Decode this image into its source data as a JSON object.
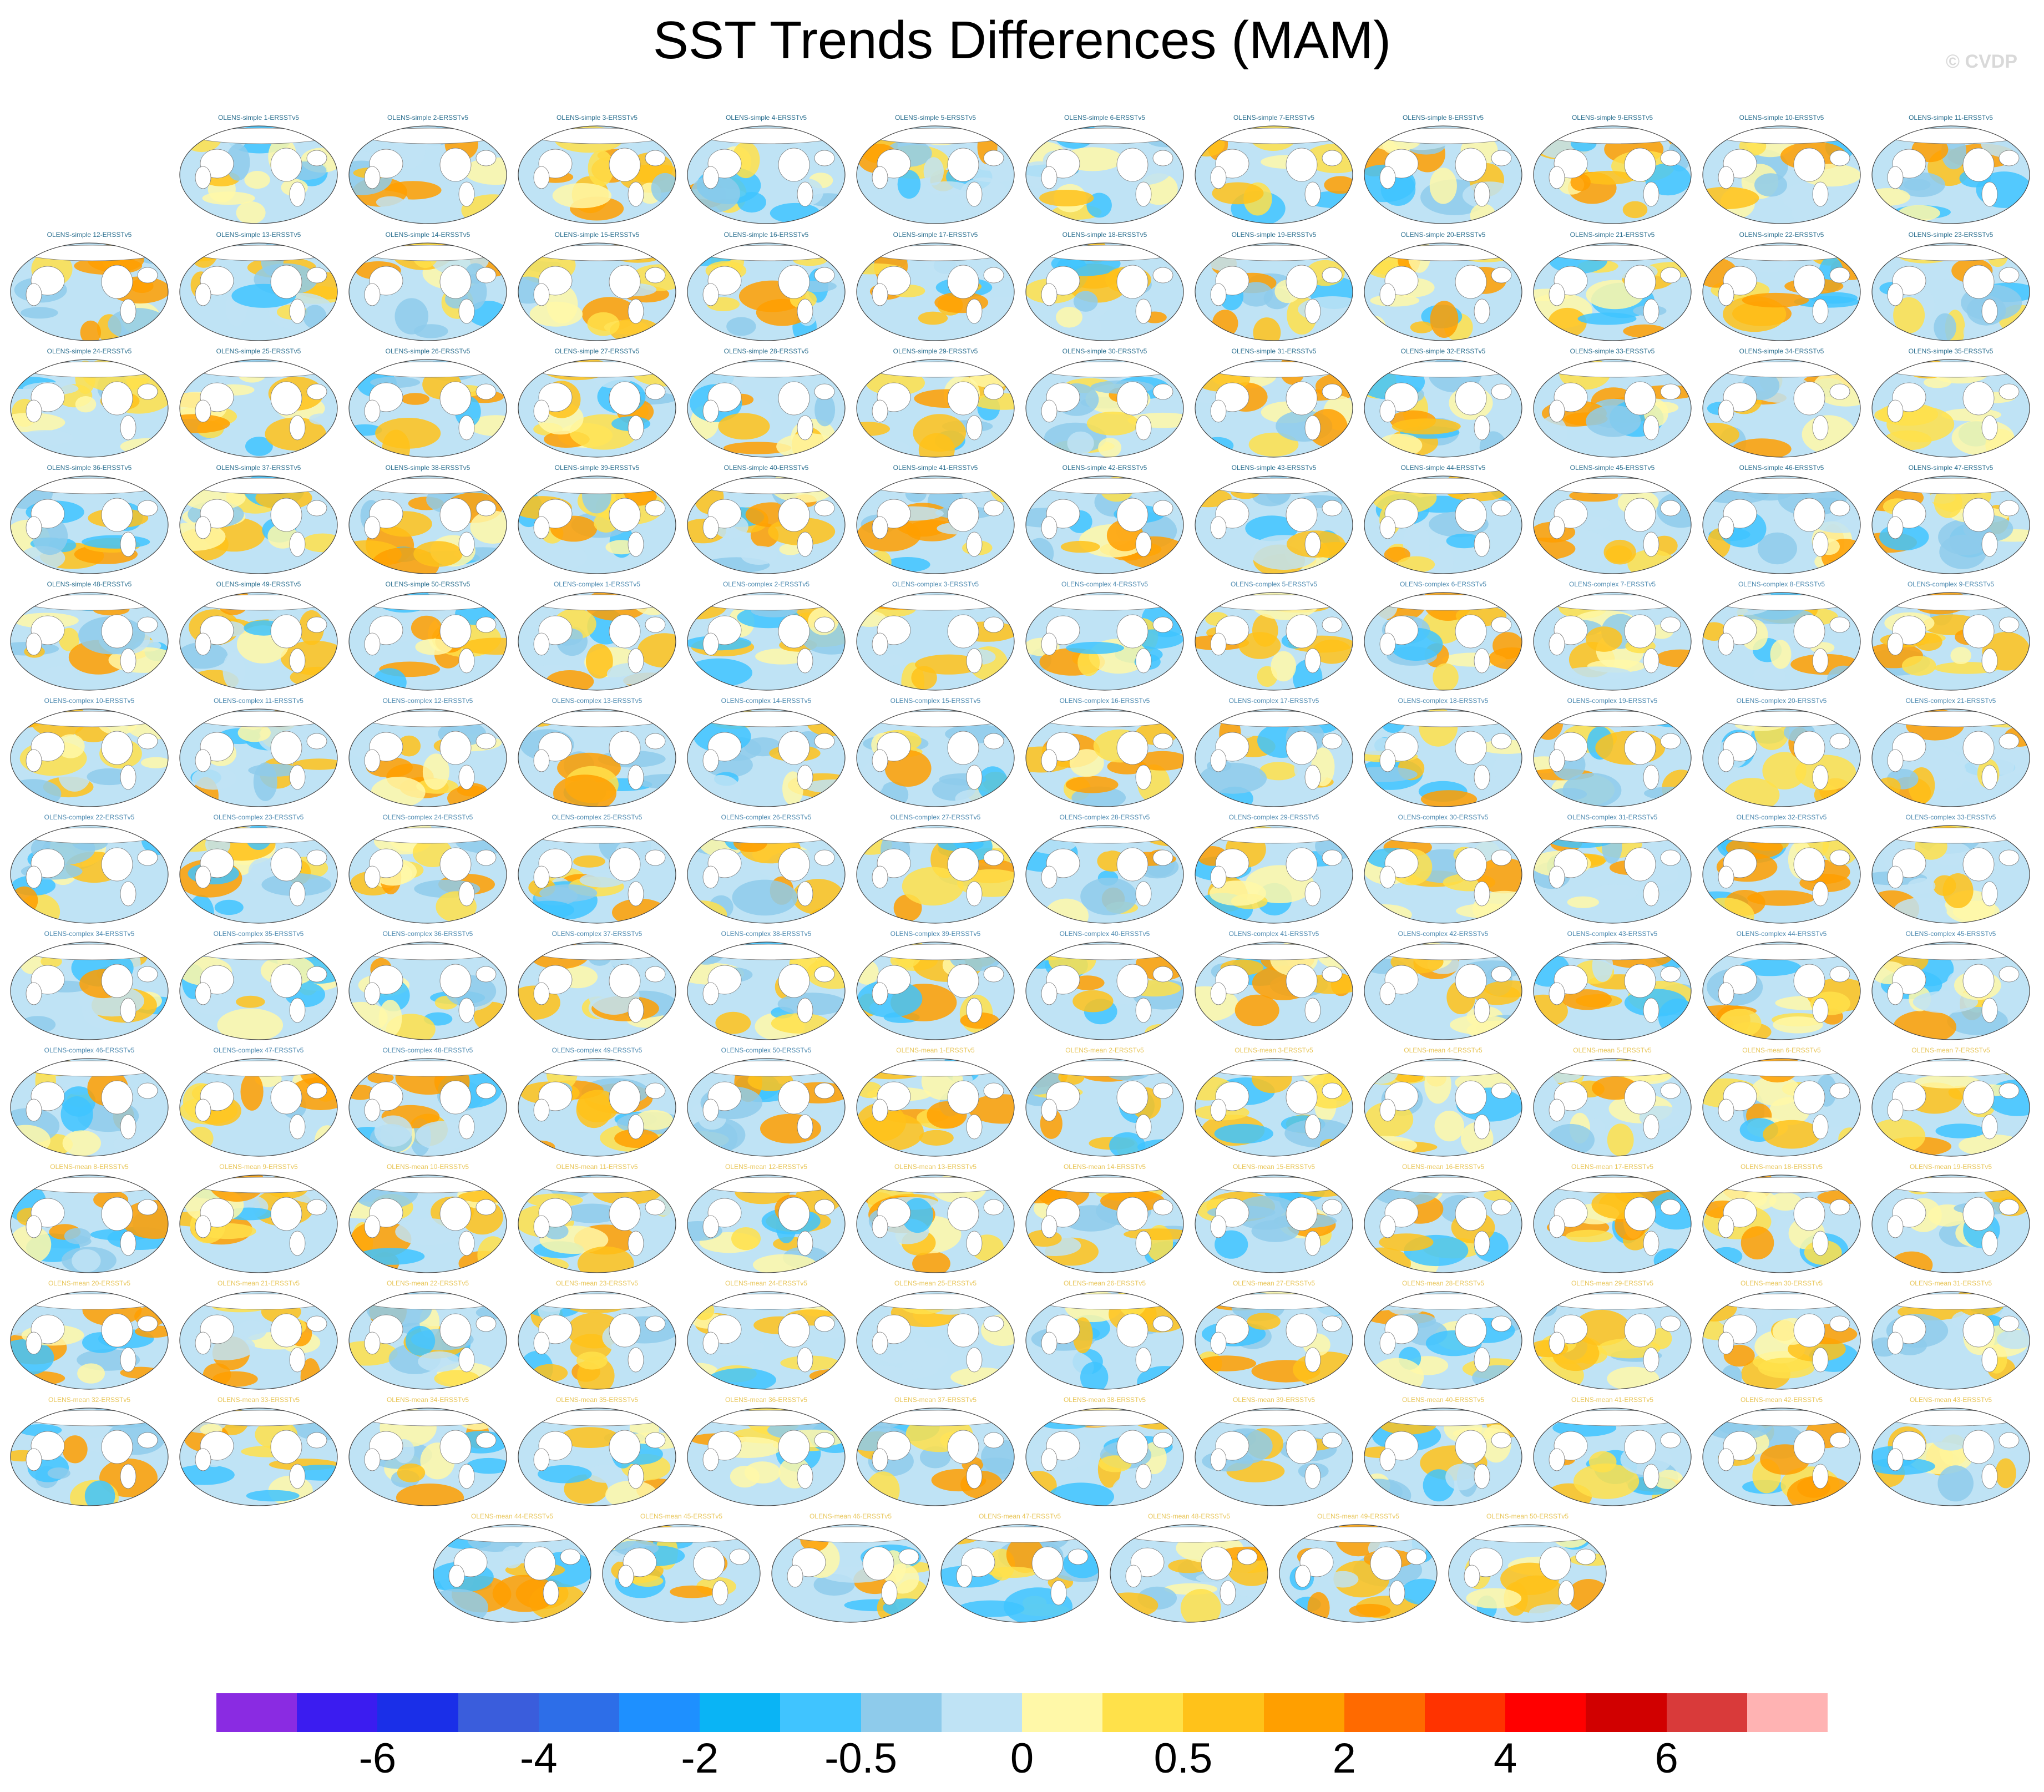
{
  "title": "SST Trends Differences (MAM)",
  "credit": "© CVDP",
  "panel_colors": {
    "simple": "#2b6f8f",
    "complex": "#4d8ab0",
    "mean": "#e8c65a"
  },
  "panels": [
    "OLENS-simple 1-ERSSTv5",
    "OLENS-simple 2-ERSSTv5",
    "OLENS-simple 3-ERSSTv5",
    "OLENS-simple 4-ERSSTv5",
    "OLENS-simple 5-ERSSTv5",
    "OLENS-simple 6-ERSSTv5",
    "OLENS-simple 7-ERSSTv5",
    "OLENS-simple 8-ERSSTv5",
    "OLENS-simple 9-ERSSTv5",
    "OLENS-simple 10-ERSSTv5",
    "OLENS-simple 11-ERSSTv5",
    "OLENS-simple 12-ERSSTv5",
    "OLENS-simple 13-ERSSTv5",
    "OLENS-simple 14-ERSSTv5",
    "OLENS-simple 15-ERSSTv5",
    "OLENS-simple 16-ERSSTv5",
    "OLENS-simple 17-ERSSTv5",
    "OLENS-simple 18-ERSSTv5",
    "OLENS-simple 19-ERSSTv5",
    "OLENS-simple 20-ERSSTv5",
    "OLENS-simple 21-ERSSTv5",
    "OLENS-simple 22-ERSSTv5",
    "OLENS-simple 23-ERSSTv5",
    "OLENS-simple 24-ERSSTv5",
    "OLENS-simple 25-ERSSTv5",
    "OLENS-simple 26-ERSSTv5",
    "OLENS-simple 27-ERSSTv5",
    "OLENS-simple 28-ERSSTv5",
    "OLENS-simple 29-ERSSTv5",
    "OLENS-simple 30-ERSSTv5",
    "OLENS-simple 31-ERSSTv5",
    "OLENS-simple 32-ERSSTv5",
    "OLENS-simple 33-ERSSTv5",
    "OLENS-simple 34-ERSSTv5",
    "OLENS-simple 35-ERSSTv5",
    "OLENS-simple 36-ERSSTv5",
    "OLENS-simple 37-ERSSTv5",
    "OLENS-simple 38-ERSSTv5",
    "OLENS-simple 39-ERSSTv5",
    "OLENS-simple 40-ERSSTv5",
    "OLENS-simple 41-ERSSTv5",
    "OLENS-simple 42-ERSSTv5",
    "OLENS-simple 43-ERSSTv5",
    "OLENS-simple 44-ERSSTv5",
    "OLENS-simple 45-ERSSTv5",
    "OLENS-simple 46-ERSSTv5",
    "OLENS-simple 47-ERSSTv5",
    "OLENS-simple 48-ERSSTv5",
    "OLENS-simple 49-ERSSTv5",
    "OLENS-simple 50-ERSSTv5",
    "OLENS-complex 1-ERSSTv5",
    "OLENS-complex 2-ERSSTv5",
    "OLENS-complex 3-ERSSTv5",
    "OLENS-complex 4-ERSSTv5",
    "OLENS-complex 5-ERSSTv5",
    "OLENS-complex 6-ERSSTv5",
    "OLENS-complex 7-ERSSTv5",
    "OLENS-complex 8-ERSSTv5",
    "OLENS-complex 9-ERSSTv5",
    "OLENS-complex 10-ERSSTv5",
    "OLENS-complex 11-ERSSTv5",
    "OLENS-complex 12-ERSSTv5",
    "OLENS-complex 13-ERSSTv5",
    "OLENS-complex 14-ERSSTv5",
    "OLENS-complex 15-ERSSTv5",
    "OLENS-complex 16-ERSSTv5",
    "OLENS-complex 17-ERSSTv5",
    "OLENS-complex 18-ERSSTv5",
    "OLENS-complex 19-ERSSTv5",
    "OLENS-complex 20-ERSSTv5",
    "OLENS-complex 21-ERSSTv5",
    "OLENS-complex 22-ERSSTv5",
    "OLENS-complex 23-ERSSTv5",
    "OLENS-complex 24-ERSSTv5",
    "OLENS-complex 25-ERSSTv5",
    "OLENS-complex 26-ERSSTv5",
    "OLENS-complex 27-ERSSTv5",
    "OLENS-complex 28-ERSSTv5",
    "OLENS-complex 29-ERSSTv5",
    "OLENS-complex 30-ERSSTv5",
    "OLENS-complex 31-ERSSTv5",
    "OLENS-complex 32-ERSSTv5",
    "OLENS-complex 33-ERSSTv5",
    "OLENS-complex 34-ERSSTv5",
    "OLENS-complex 35-ERSSTv5",
    "OLENS-complex 36-ERSSTv5",
    "OLENS-complex 37-ERSSTv5",
    "OLENS-complex 38-ERSSTv5",
    "OLENS-complex 39-ERSSTv5",
    "OLENS-complex 40-ERSSTv5",
    "OLENS-complex 41-ERSSTv5",
    "OLENS-complex 42-ERSSTv5",
    "OLENS-complex 43-ERSSTv5",
    "OLENS-complex 44-ERSSTv5",
    "OLENS-complex 45-ERSSTv5",
    "OLENS-complex 46-ERSSTv5",
    "OLENS-complex 47-ERSSTv5",
    "OLENS-complex 48-ERSSTv5",
    "OLENS-complex 49-ERSSTv5",
    "OLENS-complex 50-ERSSTv5",
    "OLENS-mean 1-ERSSTv5",
    "OLENS-mean 2-ERSSTv5",
    "OLENS-mean 3-ERSSTv5",
    "OLENS-mean 4-ERSSTv5",
    "OLENS-mean 5-ERSSTv5",
    "OLENS-mean 6-ERSSTv5",
    "OLENS-mean 7-ERSSTv5",
    "OLENS-mean 8-ERSSTv5",
    "OLENS-mean 9-ERSSTv5",
    "OLENS-mean 10-ERSSTv5",
    "OLENS-mean 11-ERSSTv5",
    "OLENS-mean 12-ERSSTv5",
    "OLENS-mean 13-ERSSTv5",
    "OLENS-mean 14-ERSSTv5",
    "OLENS-mean 15-ERSSTv5",
    "OLENS-mean 16-ERSSTv5",
    "OLENS-mean 17-ERSSTv5",
    "OLENS-mean 18-ERSSTv5",
    "OLENS-mean 19-ERSSTv5",
    "OLENS-mean 20-ERSSTv5",
    "OLENS-mean 21-ERSSTv5",
    "OLENS-mean 22-ERSSTv5",
    "OLENS-mean 23-ERSSTv5",
    "OLENS-mean 24-ERSSTv5",
    "OLENS-mean 25-ERSSTv5",
    "OLENS-mean 26-ERSSTv5",
    "OLENS-mean 27-ERSSTv5",
    "OLENS-mean 28-ERSSTv5",
    "OLENS-mean 29-ERSSTv5",
    "OLENS-mean 30-ERSSTv5",
    "OLENS-mean 31-ERSSTv5",
    "OLENS-mean 32-ERSSTv5",
    "OLENS-mean 33-ERSSTv5",
    "OLENS-mean 34-ERSSTv5",
    "OLENS-mean 35-ERSSTv5",
    "OLENS-mean 36-ERSSTv5",
    "OLENS-mean 37-ERSSTv5",
    "OLENS-mean 38-ERSSTv5",
    "OLENS-mean 39-ERSSTv5",
    "OLENS-mean 40-ERSSTv5",
    "OLENS-mean 41-ERSSTv5",
    "OLENS-mean 42-ERSSTv5",
    "OLENS-mean 43-ERSSTv5",
    "OLENS-mean 44-ERSSTv5",
    "OLENS-mean 45-ERSSTv5",
    "OLENS-mean 46-ERSSTv5",
    "OLENS-mean 47-ERSSTv5",
    "OLENS-mean 48-ERSSTv5",
    "OLENS-mean 49-ERSSTv5",
    "OLENS-mean 50-ERSSTv5"
  ],
  "colorbar": {
    "colors": [
      "#8a2be2",
      "#3b1cf0",
      "#1a2fe8",
      "#3a5ddc",
      "#2d6ee8",
      "#1e90ff",
      "#0ab4f5",
      "#40c4ff",
      "#8ecbeb",
      "#bfe3f5",
      "#fff8a8",
      "#ffe14a",
      "#ffc21a",
      "#ff9f00",
      "#ff6a00",
      "#ff3300",
      "#ff0000",
      "#d10000",
      "#d93a3a",
      "#ffb3b3"
    ],
    "tick_labels": [
      "-6",
      "-4",
      "-2",
      "-0.5",
      "0",
      "0.5",
      "2",
      "4",
      "6"
    ]
  }
}
